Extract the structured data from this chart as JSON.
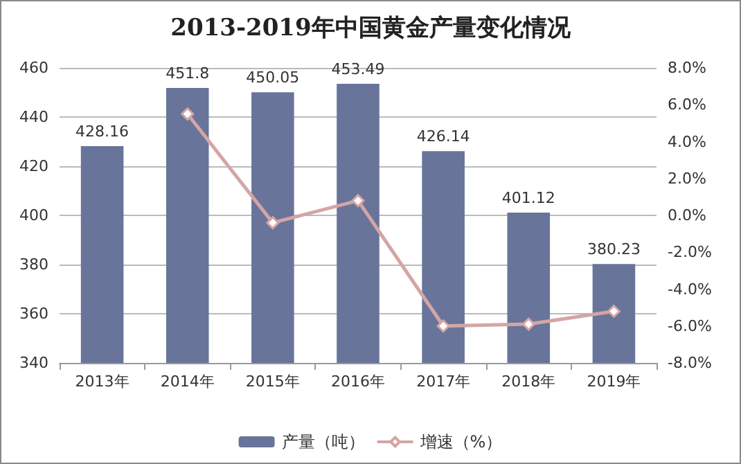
{
  "chart_data": {
    "type": "bar",
    "title": "2013-2019年中国黄金产量变化情况",
    "categories": [
      "2013年",
      "2014年",
      "2015年",
      "2016年",
      "2017年",
      "2018年",
      "2019年"
    ],
    "series": [
      {
        "name": "产量（吨）",
        "color": "#68749a",
        "values": [
          428.16,
          451.8,
          450.05,
          453.49,
          426.14,
          401.12,
          380.23
        ],
        "data_labels": true
      },
      {
        "name": "增速（%）",
        "type": "line",
        "axis": "y2",
        "color": "#d4a5a5",
        "marker": "diamond",
        "values": [
          null,
          5.5,
          -0.4,
          0.8,
          -6.0,
          -5.9,
          -5.2
        ]
      }
    ],
    "ylim": [
      340,
      460
    ],
    "yticks": [
      340,
      360,
      380,
      400,
      420,
      440,
      460
    ],
    "y2lim": [
      -8,
      8
    ],
    "y2ticks": [
      {
        "value": -8,
        "label": "-8.0%"
      },
      {
        "value": -6,
        "label": "-6.0%"
      },
      {
        "value": -4,
        "label": "-4.0%"
      },
      {
        "value": -2,
        "label": "-2.0%"
      },
      {
        "value": 0,
        "label": "0.0%"
      },
      {
        "value": 2,
        "label": "2.0%"
      },
      {
        "value": 4,
        "label": "4.0%"
      },
      {
        "value": 6,
        "label": "6.0%"
      },
      {
        "value": 8,
        "label": "8.0%"
      }
    ],
    "grid": "y",
    "legend": "bottom"
  }
}
